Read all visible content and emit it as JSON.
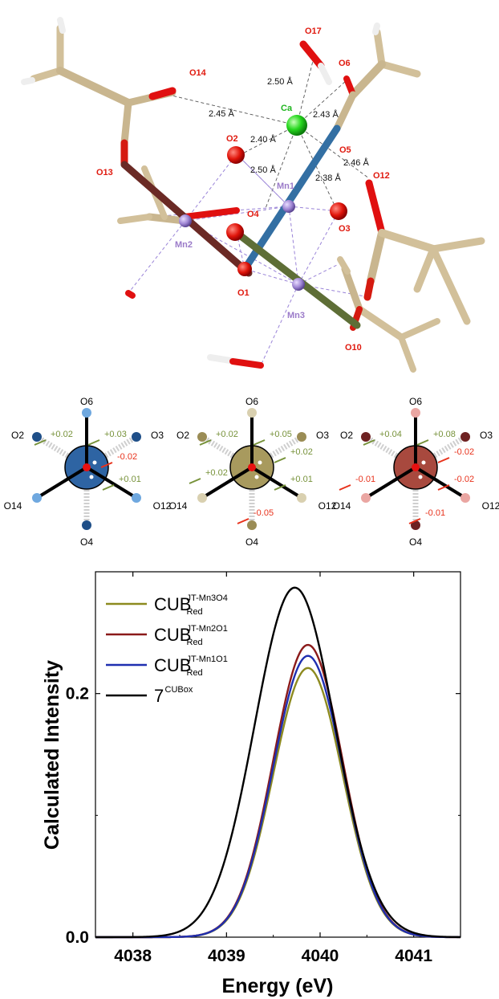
{
  "structure": {
    "atoms": [
      {
        "label": "O17"
      },
      {
        "label": "O6"
      },
      {
        "label": "O14"
      },
      {
        "label": "Ca"
      },
      {
        "label": "O2"
      },
      {
        "label": "O5"
      },
      {
        "label": "O12"
      },
      {
        "label": "O13"
      },
      {
        "label": "Mn1"
      },
      {
        "label": "O3"
      },
      {
        "label": "O4"
      },
      {
        "label": "Mn2"
      },
      {
        "label": "O1"
      },
      {
        "label": "Mn3"
      },
      {
        "label": "O10"
      }
    ],
    "distances": [
      "2.50 Å",
      "2.43 Å",
      "2.45 Å",
      "2.40 Å",
      "2.50 Å",
      "2.38 Å",
      "2.46 Å"
    ]
  },
  "diagrams": [
    {
      "center_color": "#2e64a3",
      "end_color_dark": "#1f4f88",
      "end_color_light": "#6fa8df",
      "labels": {
        "top": "O6",
        "upper_left": "O2",
        "upper_right": "O3",
        "lower_left": "O14",
        "lower_right": "O12",
        "bottom": "O4"
      },
      "shifts": [
        {
          "text": "+0.02",
          "color": "#77923a"
        },
        {
          "text": "+0.03",
          "color": "#77923a"
        },
        {
          "text": "-0.02",
          "color": "#e8321c"
        },
        {
          "text": "+0.01",
          "color": "#77923a"
        }
      ]
    },
    {
      "center_color": "#a89a5e",
      "end_color_dark": "#9a8c55",
      "end_color_light": "#d9d0b0",
      "labels": {
        "top": "O6",
        "upper_left": "O2",
        "upper_right": "O3",
        "lower_left": "O14",
        "lower_right": "O12",
        "bottom": "O4"
      },
      "shifts": [
        {
          "text": "+0.02",
          "color": "#77923a"
        },
        {
          "text": "+0.05",
          "color": "#77923a"
        },
        {
          "text": "+0.02",
          "color": "#77923a"
        },
        {
          "text": "+0.02",
          "color": "#77923a"
        },
        {
          "text": "+0.01",
          "color": "#77923a"
        },
        {
          "text": "-0.05",
          "color": "#e8321c"
        }
      ]
    },
    {
      "center_color": "#a8493e",
      "end_color_dark": "#6e2222",
      "end_color_light": "#eaa6a2",
      "labels": {
        "top": "O6",
        "upper_left": "O2",
        "upper_right": "O3",
        "lower_left": "O14",
        "lower_right": "O12",
        "bottom": "O4"
      },
      "shifts": [
        {
          "text": "+0.04",
          "color": "#77923a"
        },
        {
          "text": "+0.08",
          "color": "#77923a"
        },
        {
          "text": "-0.02",
          "color": "#e8321c"
        },
        {
          "text": "-0.01",
          "color": "#e8321c"
        },
        {
          "text": "-0.02",
          "color": "#e8321c"
        },
        {
          "text": "-0.01",
          "color": "#e8321c"
        }
      ]
    }
  ],
  "chart_data": {
    "type": "line",
    "title": "",
    "xlabel": "Energy (eV)",
    "ylabel": "Calculated Intensity",
    "xlim": [
      4037.6,
      4041.5
    ],
    "ylim": [
      0,
      0.3
    ],
    "x_ticks": [
      "4038",
      "4039",
      "4040",
      "4041"
    ],
    "y_ticks": [
      "0.0",
      "0.2"
    ],
    "legend_position": "top-left",
    "series": [
      {
        "name": "CUB",
        "sup": "JT-Mn3O4",
        "sub": "Red",
        "color": "#8d8a1f",
        "peak_x": 4039.87,
        "peak_y": 0.221,
        "sigma": 0.37
      },
      {
        "name": "CUB",
        "sup": "JT-Mn2O1",
        "sub": "Red",
        "color": "#8b1a1a",
        "peak_x": 4039.87,
        "peak_y": 0.24,
        "sigma": 0.37
      },
      {
        "name": "CUB",
        "sup": "JT-Mn1O1",
        "sub": "Red",
        "color": "#1f2fb0",
        "peak_x": 4039.87,
        "peak_y": 0.231,
        "sigma": 0.37
      },
      {
        "name": "7",
        "sup": "CUBox",
        "sub": "",
        "color": "#000000",
        "peak_x": 4039.73,
        "peak_y": 0.287,
        "sigma": 0.43
      }
    ]
  }
}
